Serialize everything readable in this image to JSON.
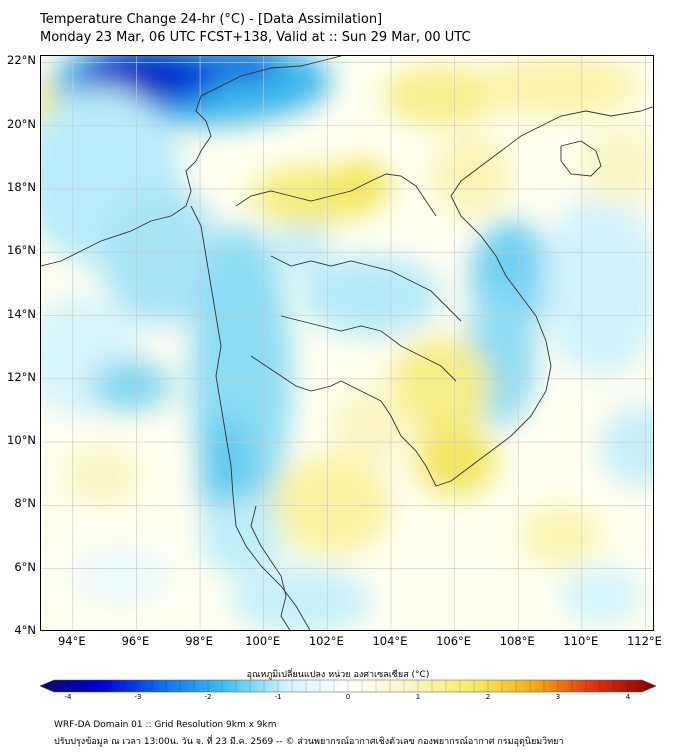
{
  "title": {
    "line1": "Temperature Change 24-hr (°C) - [Data Assimilation]",
    "line2": "Monday 23 Mar, 06 UTC FCST+138, Valid at :: Sun 29 Mar, 00 UTC"
  },
  "map": {
    "lat_labels": [
      "22°N",
      "20°N",
      "18°N",
      "16°N",
      "14°N",
      "12°N",
      "10°N",
      "8°N",
      "6°N",
      "4°N"
    ],
    "lon_labels": [
      "94°E",
      "96°E",
      "98°E",
      "100°E",
      "102°E",
      "104°E",
      "106°E",
      "108°E",
      "110°E",
      "112°E"
    ],
    "lon_values": [
      94,
      96,
      98,
      100,
      102,
      104,
      106,
      108,
      110,
      112
    ],
    "lat_values": [
      22,
      20,
      18,
      16,
      14,
      12,
      10,
      8,
      6,
      4
    ],
    "lon_range": [
      93,
      112.3
    ],
    "lat_range": [
      4,
      22.2
    ],
    "background_color": "#ffffff"
  },
  "colorbar": {
    "title": "อุณหภูมิเปลี่ยนแปลง หน่วย องศาเซลเซียส (°C)",
    "ticks": [
      "-4",
      "-3",
      "-2",
      "-1",
      "0",
      "1",
      "2",
      "3",
      "4"
    ],
    "tick_values": [
      -4,
      -3,
      -2,
      -1,
      0,
      1,
      2,
      3,
      4
    ],
    "range": [
      -4,
      4
    ],
    "colors": [
      "#0a0a6e",
      "#0000d8",
      "#1070f0",
      "#3bc0f0",
      "#d0f4fc",
      "#ffffff",
      "#fbf6c4",
      "#f5ec6a",
      "#f0b010",
      "#e03010",
      "#800000"
    ]
  },
  "footer": {
    "line1": "WRF-DA Domain 01 :: Grid Resolution 9km x 9km",
    "line2": "ปรับปรุงข้อมูล ณ เวลา 13:00น. วัน จ. ที่ 23 มี.ค. 2569 -- © ส่วนพยากรณ์อากาศเชิงตัวเลข กองพยากรณ์อากาศ กรมอุตุนิยมวิทยา"
  }
}
